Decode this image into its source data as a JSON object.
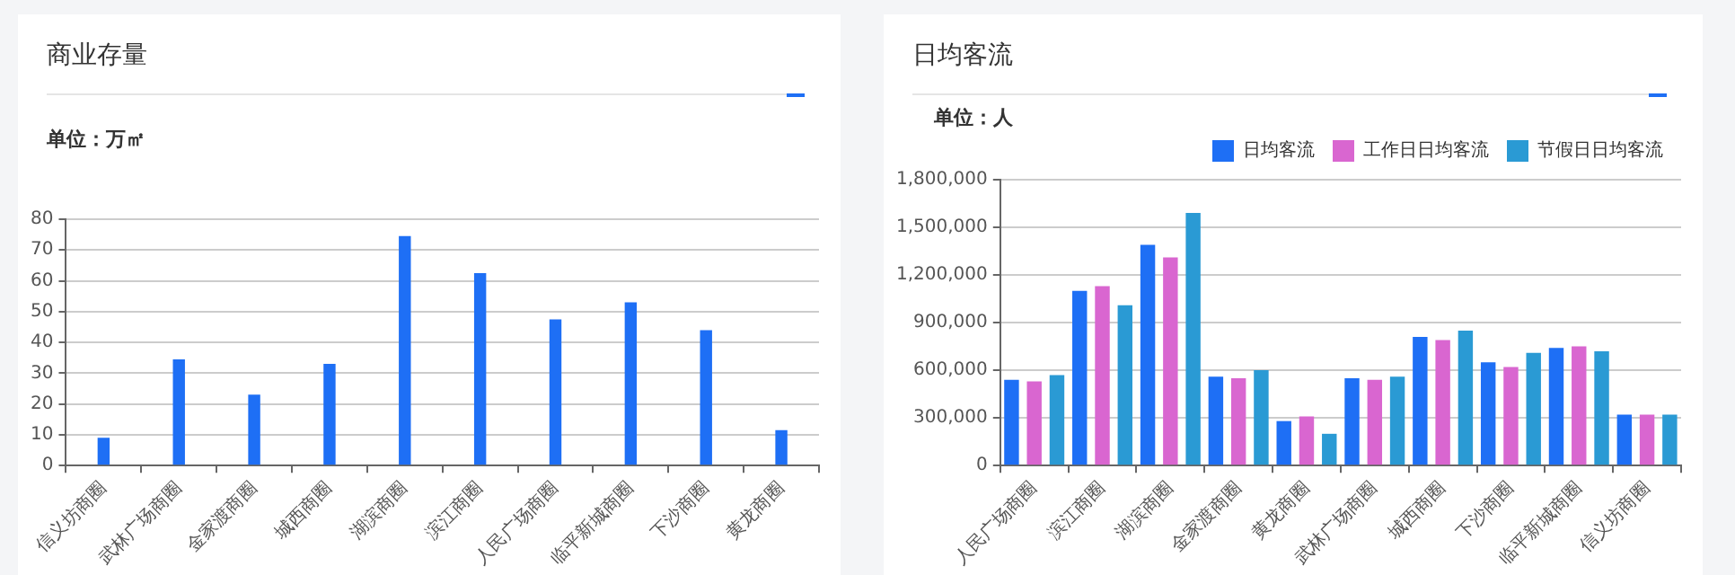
{
  "chart_data": [
    {
      "type": "bar",
      "title": "商业存量",
      "subtitle": "单位：万㎡",
      "categories": [
        "信义坊商圈",
        "武林广场商圈",
        "金家渡商圈",
        "城西商圈",
        "湖滨商圈",
        "滨江商圈",
        "人民广场商圈",
        "临平新城商圈",
        "下沙商圈",
        "黄龙商圈"
      ],
      "values": [
        9,
        34.5,
        23,
        33,
        74.5,
        62.5,
        47.5,
        53,
        44,
        11.5
      ],
      "color": "#1e6ff5",
      "ylim": [
        0,
        80
      ],
      "yticks": [
        0,
        10,
        20,
        30,
        40,
        50,
        60,
        70,
        80
      ],
      "grid": "y"
    },
    {
      "type": "bar",
      "title": "日均客流",
      "subtitle": "单位：人",
      "categories": [
        "人民广场商圈",
        "滨江商圈",
        "湖滨商圈",
        "金家渡商圈",
        "黄龙商圈",
        "武林广场商圈",
        "城西商圈",
        "下沙商圈",
        "临平新城商圈",
        "信义坊商圈"
      ],
      "series": [
        {
          "name": "日均客流",
          "color": "#1e6ff5",
          "values": [
            540000,
            1100000,
            1390000,
            560000,
            280000,
            550000,
            810000,
            650000,
            740000,
            320000
          ]
        },
        {
          "name": "工作日日均客流",
          "color": "#d966d0",
          "values": [
            530000,
            1130000,
            1310000,
            550000,
            310000,
            540000,
            790000,
            620000,
            750000,
            320000
          ]
        },
        {
          "name": "节假日日均客流",
          "color": "#2a9ad4",
          "values": [
            570000,
            1010000,
            1590000,
            600000,
            200000,
            560000,
            850000,
            710000,
            720000,
            320000
          ]
        }
      ],
      "ylim": [
        0,
        1800000
      ],
      "yticks": [
        0,
        {
          "value": 300000,
          "label": "300,000"
        },
        {
          "value": 600000,
          "label": "600,000"
        },
        {
          "value": 900000,
          "label": "900,000"
        },
        {
          "value": 1200000,
          "label": "1,200,000"
        },
        {
          "value": 1500000,
          "label": "1,500,000"
        },
        {
          "value": 1800000,
          "label": "1,800,000"
        }
      ],
      "grid": "y",
      "legend": "top right"
    }
  ]
}
